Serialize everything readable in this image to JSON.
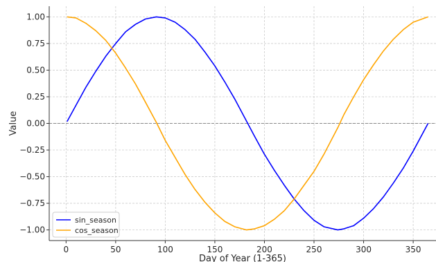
{
  "chart_data": {
    "type": "line",
    "title": "",
    "xlabel": "Day of Year (1-365)",
    "ylabel": "Value",
    "xlim": [
      -17,
      373
    ],
    "ylim": [
      -1.1,
      1.1
    ],
    "xticks": [
      0,
      50,
      100,
      150,
      200,
      250,
      300,
      350
    ],
    "yticks": [
      -1.0,
      -0.75,
      -0.5,
      -0.25,
      0.0,
      0.25,
      0.5,
      0.75,
      1.0
    ],
    "ytick_labels": [
      "−1.00",
      "−0.75",
      "−0.50",
      "−0.25",
      "0.00",
      "0.25",
      "0.50",
      "0.75",
      "1.00"
    ],
    "grid": true,
    "grid_style": "dashed",
    "legend_position": "lower-left",
    "reference_line": {
      "y": 0,
      "style": "dashed",
      "color": "#888888"
    },
    "x": [
      1,
      10,
      20,
      30,
      40,
      50,
      60,
      70,
      80,
      91,
      100,
      110,
      120,
      130,
      140,
      150,
      160,
      170,
      182,
      190,
      200,
      210,
      220,
      230,
      240,
      250,
      260,
      274,
      280,
      290,
      300,
      310,
      320,
      330,
      340,
      350,
      365
    ],
    "series": [
      {
        "name": "sin_season",
        "color": "#0000ff",
        "values": [
          0.017,
          0.17,
          0.34,
          0.49,
          0.63,
          0.75,
          0.86,
          0.93,
          0.98,
          1.0,
          0.99,
          0.95,
          0.88,
          0.79,
          0.67,
          0.54,
          0.39,
          0.23,
          0.02,
          -0.12,
          -0.29,
          -0.44,
          -0.58,
          -0.71,
          -0.82,
          -0.91,
          -0.97,
          -1.0,
          -0.99,
          -0.96,
          -0.89,
          -0.8,
          -0.69,
          -0.56,
          -0.42,
          -0.26,
          0.0
        ]
      },
      {
        "name": "cos_season",
        "color": "#ffa500",
        "values": [
          1.0,
          0.99,
          0.94,
          0.87,
          0.78,
          0.66,
          0.52,
          0.37,
          0.2,
          0.01,
          -0.16,
          -0.32,
          -0.48,
          -0.62,
          -0.74,
          -0.84,
          -0.92,
          -0.97,
          -1.0,
          -0.99,
          -0.96,
          -0.9,
          -0.82,
          -0.71,
          -0.58,
          -0.45,
          -0.29,
          -0.04,
          0.08,
          0.25,
          0.41,
          0.55,
          0.68,
          0.79,
          0.88,
          0.95,
          1.0
        ]
      }
    ]
  }
}
